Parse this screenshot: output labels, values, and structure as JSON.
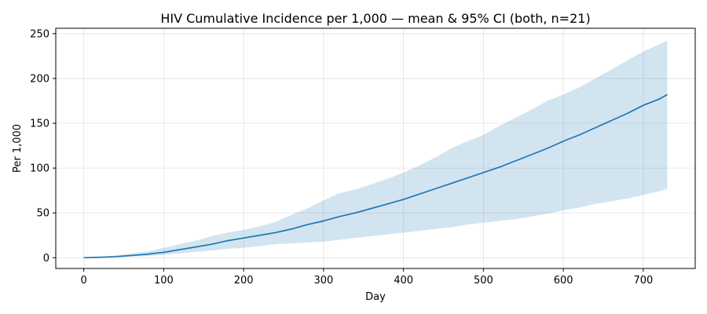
{
  "chart_data": {
    "type": "line",
    "title": "HIV Cumulative Incidence per 1,000 — mean & 95% CI (both, n=21)",
    "xlabel": "Day",
    "ylabel": "Per 1,000",
    "xlim": [
      -35,
      765
    ],
    "ylim": [
      -12,
      256
    ],
    "x_ticks": [
      0,
      100,
      200,
      300,
      400,
      500,
      600,
      700
    ],
    "y_ticks": [
      0,
      50,
      100,
      150,
      200,
      250
    ],
    "grid": true,
    "colors": {
      "line": "#1f77b4",
      "band": "#1f77b4"
    },
    "series": [
      {
        "kind": "mean",
        "x": [
          0,
          20,
          40,
          60,
          80,
          100,
          120,
          140,
          160,
          180,
          200,
          220,
          240,
          260,
          280,
          300,
          320,
          340,
          360,
          380,
          400,
          420,
          440,
          460,
          480,
          500,
          520,
          540,
          560,
          580,
          600,
          620,
          640,
          660,
          680,
          700,
          720,
          730
        ],
        "y": [
          0,
          0.5,
          1.2,
          2.5,
          4,
          6,
          9,
          12,
          15,
          19,
          22,
          25,
          28,
          32,
          37,
          41,
          46,
          50,
          55,
          60,
          65,
          71,
          77,
          83,
          89,
          95,
          101,
          108,
          115,
          122,
          130,
          137,
          145,
          153,
          161,
          170,
          177,
          182
        ]
      },
      {
        "kind": "ci95",
        "x": [
          0,
          20,
          40,
          60,
          80,
          100,
          120,
          140,
          160,
          180,
          200,
          220,
          240,
          260,
          280,
          300,
          320,
          340,
          360,
          380,
          400,
          420,
          440,
          460,
          480,
          500,
          520,
          540,
          560,
          580,
          600,
          620,
          640,
          660,
          680,
          700,
          720,
          730
        ],
        "lower": [
          0,
          0.2,
          0.5,
          1.2,
          2,
          3,
          5,
          6.5,
          8,
          10,
          11,
          13,
          15,
          16,
          17,
          18,
          20,
          22,
          24,
          26,
          28,
          30,
          32,
          34,
          37,
          39,
          41,
          43,
          46,
          49,
          53,
          56,
          60,
          63,
          66,
          70,
          74,
          77
        ],
        "upper": [
          0,
          1,
          2.5,
          5,
          7,
          11,
          15,
          19,
          24,
          28,
          31,
          35,
          40,
          48,
          55,
          64,
          72,
          76,
          82,
          88,
          95,
          103,
          112,
          122,
          130,
          137,
          147,
          156,
          165,
          175,
          182,
          190,
          200,
          210,
          220,
          230,
          238,
          242
        ]
      }
    ]
  }
}
